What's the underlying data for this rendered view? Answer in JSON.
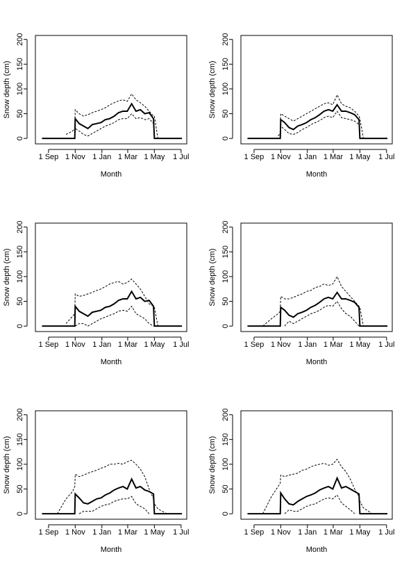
{
  "chart_data": [
    {
      "type": "line",
      "xlabel": "Month",
      "ylabel": "Snow depth (cm)",
      "xlim": [
        -30,
        316
      ],
      "ylim": [
        -11,
        208
      ],
      "yticks": [
        0,
        50,
        100,
        150,
        200
      ],
      "xticks": [
        {
          "value": 0,
          "label": "1 Sep"
        },
        {
          "value": 61,
          "label": "1 Nov"
        },
        {
          "value": 122,
          "label": "1 Jan"
        },
        {
          "value": 181,
          "label": "1 Mar"
        },
        {
          "value": 242,
          "label": "1 May"
        },
        {
          "value": 303,
          "label": "1 Jul"
        }
      ],
      "x": [
        -15,
        0,
        20,
        40,
        55,
        60,
        61,
        70,
        80,
        90,
        100,
        110,
        120,
        130,
        140,
        150,
        160,
        170,
        180,
        190,
        200,
        210,
        220,
        230,
        240,
        242,
        250,
        270,
        290,
        305
      ],
      "series": [
        {
          "color": "#000000",
          "linestyle": "solid",
          "linewidth": 2,
          "values": [
            0,
            0,
            0,
            0,
            0,
            0,
            40,
            30,
            25,
            20,
            28,
            30,
            32,
            38,
            40,
            45,
            52,
            55,
            55,
            70,
            55,
            58,
            50,
            52,
            40,
            0,
            0,
            0,
            0,
            0
          ]
        },
        {
          "color": "#000000",
          "linestyle": "dashed",
          "linewidth": 1,
          "values": [
            null,
            null,
            null,
            8,
            15,
            20,
            58,
            50,
            45,
            48,
            52,
            55,
            58,
            62,
            68,
            72,
            76,
            78,
            75,
            90,
            78,
            72,
            65,
            55,
            45,
            45,
            0,
            null,
            null,
            null
          ]
        },
        {
          "color": "#000000",
          "linestyle": "dashed",
          "linewidth": 1,
          "values": [
            null,
            null,
            null,
            null,
            null,
            0,
            20,
            15,
            8,
            5,
            10,
            15,
            20,
            25,
            28,
            32,
            38,
            40,
            40,
            50,
            40,
            42,
            38,
            40,
            30,
            0,
            null,
            null,
            null,
            null
          ]
        }
      ]
    },
    {
      "type": "line",
      "xlabel": "Month",
      "ylabel": "Snow depth (cm)",
      "xlim": [
        -30,
        316
      ],
      "ylim": [
        -11,
        208
      ],
      "yticks": [
        0,
        50,
        100,
        150,
        200
      ],
      "xticks": [
        {
          "value": 0,
          "label": "1 Sep"
        },
        {
          "value": 61,
          "label": "1 Nov"
        },
        {
          "value": 122,
          "label": "1 Jan"
        },
        {
          "value": 181,
          "label": "1 Mar"
        },
        {
          "value": 242,
          "label": "1 May"
        },
        {
          "value": 303,
          "label": "1 Jul"
        }
      ],
      "x": [
        -15,
        0,
        20,
        40,
        55,
        60,
        61,
        70,
        80,
        90,
        100,
        110,
        120,
        130,
        140,
        150,
        160,
        170,
        180,
        190,
        200,
        210,
        220,
        230,
        240,
        242,
        250,
        270,
        290,
        305
      ],
      "series": [
        {
          "color": "#000000",
          "linestyle": "solid",
          "linewidth": 2,
          "values": [
            0,
            0,
            0,
            0,
            0,
            0,
            38,
            32,
            22,
            18,
            25,
            28,
            32,
            38,
            42,
            48,
            55,
            58,
            55,
            68,
            55,
            55,
            52,
            48,
            38,
            0,
            0,
            0,
            0,
            0
          ]
        },
        {
          "color": "#000000",
          "linestyle": "dashed",
          "linewidth": 1,
          "values": [
            null,
            null,
            null,
            null,
            5,
            10,
            50,
            45,
            40,
            35,
            40,
            45,
            50,
            55,
            60,
            65,
            70,
            72,
            68,
            88,
            70,
            65,
            62,
            55,
            45,
            40,
            0,
            null,
            null,
            null
          ]
        },
        {
          "color": "#000000",
          "linestyle": "dashed",
          "linewidth": 1,
          "values": [
            null,
            null,
            null,
            null,
            null,
            0,
            25,
            18,
            10,
            8,
            12,
            18,
            22,
            28,
            32,
            36,
            42,
            45,
            42,
            55,
            42,
            40,
            38,
            35,
            28,
            0,
            null,
            null,
            null,
            null
          ]
        }
      ]
    },
    {
      "type": "line",
      "xlabel": "Month",
      "ylabel": "Snow depth (cm)",
      "xlim": [
        -30,
        316
      ],
      "ylim": [
        -11,
        208
      ],
      "yticks": [
        0,
        50,
        100,
        150,
        200
      ],
      "xticks": [
        {
          "value": 0,
          "label": "1 Sep"
        },
        {
          "value": 61,
          "label": "1 Nov"
        },
        {
          "value": 122,
          "label": "1 Jan"
        },
        {
          "value": 181,
          "label": "1 Mar"
        },
        {
          "value": 242,
          "label": "1 May"
        },
        {
          "value": 303,
          "label": "1 Jul"
        }
      ],
      "x": [
        -15,
        0,
        20,
        40,
        55,
        60,
        61,
        70,
        80,
        90,
        100,
        110,
        120,
        130,
        140,
        150,
        160,
        170,
        180,
        190,
        200,
        210,
        220,
        230,
        240,
        242,
        250,
        270,
        290,
        305
      ],
      "series": [
        {
          "color": "#000000",
          "linestyle": "solid",
          "linewidth": 2,
          "values": [
            0,
            0,
            0,
            0,
            0,
            0,
            40,
            30,
            25,
            20,
            28,
            30,
            32,
            38,
            40,
            45,
            52,
            55,
            55,
            70,
            55,
            58,
            50,
            52,
            40,
            0,
            0,
            0,
            0,
            0
          ]
        },
        {
          "color": "#000000",
          "linestyle": "dashed",
          "linewidth": 1,
          "values": [
            null,
            null,
            null,
            5,
            20,
            25,
            65,
            60,
            62,
            65,
            68,
            72,
            75,
            80,
            85,
            88,
            90,
            85,
            88,
            95,
            85,
            75,
            60,
            45,
            40,
            38,
            0,
            null,
            null,
            null
          ]
        },
        {
          "color": "#000000",
          "linestyle": "dashed",
          "linewidth": 1,
          "values": [
            null,
            null,
            null,
            null,
            null,
            null,
            0,
            5,
            5,
            0,
            5,
            10,
            15,
            18,
            22,
            25,
            30,
            32,
            30,
            40,
            25,
            20,
            15,
            5,
            0,
            null,
            null,
            null,
            null,
            null
          ]
        }
      ]
    },
    {
      "type": "line",
      "xlabel": "Month",
      "ylabel": "Snow depth (cm)",
      "xlim": [
        -30,
        316
      ],
      "ylim": [
        -11,
        208
      ],
      "yticks": [
        0,
        50,
        100,
        150,
        200
      ],
      "xticks": [
        {
          "value": 0,
          "label": "1 Sep"
        },
        {
          "value": 61,
          "label": "1 Nov"
        },
        {
          "value": 122,
          "label": "1 Jan"
        },
        {
          "value": 181,
          "label": "1 Mar"
        },
        {
          "value": 242,
          "label": "1 May"
        },
        {
          "value": 303,
          "label": "1 Jul"
        }
      ],
      "x": [
        -15,
        0,
        20,
        40,
        55,
        60,
        61,
        70,
        80,
        90,
        100,
        110,
        120,
        130,
        140,
        150,
        160,
        170,
        180,
        190,
        200,
        210,
        220,
        230,
        240,
        242,
        250,
        270,
        290,
        305
      ],
      "series": [
        {
          "color": "#000000",
          "linestyle": "solid",
          "linewidth": 2,
          "values": [
            0,
            0,
            0,
            0,
            0,
            0,
            38,
            32,
            22,
            18,
            25,
            28,
            32,
            38,
            42,
            48,
            55,
            58,
            55,
            68,
            55,
            55,
            52,
            48,
            38,
            0,
            0,
            0,
            0,
            0
          ]
        },
        {
          "color": "#000000",
          "linestyle": "dashed",
          "linewidth": 1,
          "values": [
            null,
            null,
            0,
            15,
            25,
            30,
            60,
            55,
            55,
            58,
            62,
            65,
            70,
            72,
            78,
            80,
            85,
            82,
            85,
            100,
            80,
            70,
            60,
            50,
            40,
            38,
            0,
            null,
            null,
            null
          ]
        },
        {
          "color": "#000000",
          "linestyle": "dashed",
          "linewidth": 1,
          "values": [
            null,
            null,
            null,
            null,
            null,
            null,
            null,
            0,
            10,
            5,
            10,
            15,
            20,
            25,
            28,
            32,
            38,
            42,
            40,
            50,
            35,
            25,
            20,
            10,
            0,
            null,
            null,
            null,
            null,
            null
          ]
        }
      ]
    },
    {
      "type": "line",
      "xlabel": "Month",
      "ylabel": "Snow depth (cm)",
      "xlim": [
        -30,
        316
      ],
      "ylim": [
        -11,
        208
      ],
      "yticks": [
        0,
        50,
        100,
        150,
        200
      ],
      "xticks": [
        {
          "value": 0,
          "label": "1 Sep"
        },
        {
          "value": 61,
          "label": "1 Nov"
        },
        {
          "value": 122,
          "label": "1 Jan"
        },
        {
          "value": 181,
          "label": "1 Mar"
        },
        {
          "value": 242,
          "label": "1 May"
        },
        {
          "value": 303,
          "label": "1 Jul"
        }
      ],
      "x": [
        -15,
        0,
        20,
        40,
        55,
        60,
        61,
        70,
        80,
        90,
        100,
        110,
        120,
        130,
        140,
        150,
        160,
        170,
        180,
        190,
        200,
        210,
        220,
        230,
        240,
        242,
        250,
        270,
        290,
        305
      ],
      "series": [
        {
          "color": "#000000",
          "linestyle": "solid",
          "linewidth": 2,
          "values": [
            0,
            0,
            0,
            0,
            0,
            0,
            40,
            32,
            22,
            20,
            25,
            30,
            32,
            38,
            42,
            48,
            52,
            55,
            50,
            70,
            52,
            55,
            48,
            45,
            40,
            0,
            0,
            0,
            0,
            0
          ]
        },
        {
          "color": "#000000",
          "linestyle": "dashed",
          "linewidth": 1,
          "values": [
            null,
            null,
            0,
            30,
            45,
            55,
            80,
            75,
            78,
            82,
            85,
            88,
            92,
            95,
            100,
            100,
            102,
            100,
            105,
            108,
            100,
            90,
            75,
            50,
            30,
            20,
            10,
            0,
            null,
            null
          ]
        },
        {
          "color": "#000000",
          "linestyle": "dashed",
          "linewidth": 1,
          "values": [
            null,
            null,
            null,
            null,
            null,
            null,
            null,
            0,
            5,
            5,
            5,
            10,
            15,
            18,
            20,
            25,
            28,
            30,
            30,
            35,
            20,
            15,
            10,
            0,
            null,
            null,
            null,
            null,
            null,
            null
          ]
        }
      ]
    },
    {
      "type": "line",
      "xlabel": "Month",
      "ylabel": "Snow depth (cm)",
      "xlim": [
        -30,
        316
      ],
      "ylim": [
        -11,
        208
      ],
      "yticks": [
        0,
        50,
        100,
        150,
        200
      ],
      "xticks": [
        {
          "value": 0,
          "label": "1 Sep"
        },
        {
          "value": 61,
          "label": "1 Nov"
        },
        {
          "value": 122,
          "label": "1 Jan"
        },
        {
          "value": 181,
          "label": "1 Mar"
        },
        {
          "value": 242,
          "label": "1 May"
        },
        {
          "value": 303,
          "label": "1 Jul"
        }
      ],
      "x": [
        -15,
        0,
        20,
        40,
        55,
        60,
        61,
        70,
        80,
        90,
        100,
        110,
        120,
        130,
        140,
        150,
        160,
        170,
        180,
        190,
        200,
        210,
        220,
        230,
        240,
        242,
        250,
        270,
        290,
        305
      ],
      "series": [
        {
          "color": "#000000",
          "linestyle": "solid",
          "linewidth": 2,
          "values": [
            0,
            0,
            0,
            0,
            0,
            0,
            42,
            30,
            20,
            18,
            25,
            30,
            35,
            38,
            42,
            48,
            52,
            55,
            50,
            72,
            52,
            55,
            50,
            45,
            40,
            0,
            0,
            0,
            0,
            0
          ]
        },
        {
          "color": "#000000",
          "linestyle": "dashed",
          "linewidth": 1,
          "values": [
            null,
            null,
            0,
            35,
            55,
            62,
            78,
            75,
            78,
            80,
            82,
            88,
            90,
            95,
            98,
            100,
            102,
            98,
            100,
            110,
            95,
            85,
            70,
            50,
            35,
            25,
            12,
            0,
            null,
            null
          ]
        },
        {
          "color": "#000000",
          "linestyle": "dashed",
          "linewidth": 1,
          "values": [
            null,
            null,
            null,
            null,
            null,
            null,
            null,
            0,
            8,
            5,
            5,
            10,
            15,
            18,
            20,
            25,
            30,
            32,
            30,
            38,
            22,
            15,
            8,
            0,
            null,
            null,
            null,
            null,
            null,
            null
          ]
        }
      ]
    }
  ]
}
